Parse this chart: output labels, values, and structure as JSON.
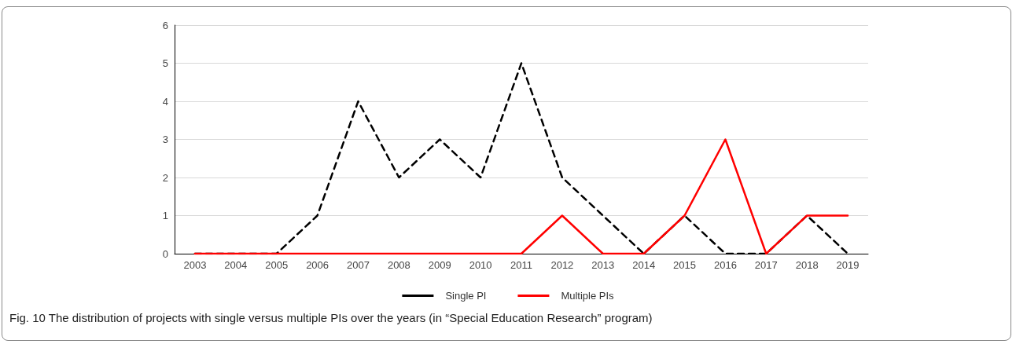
{
  "chart_data": {
    "type": "line",
    "categories": [
      "2003",
      "2004",
      "2005",
      "2006",
      "2007",
      "2008",
      "2009",
      "2010",
      "2011",
      "2012",
      "2013",
      "2014",
      "2015",
      "2016",
      "2017",
      "2018",
      "2019"
    ],
    "series": [
      {
        "name": "Single PI",
        "color": "#000000",
        "line_style": "dashed",
        "values": [
          0,
          0,
          0,
          1,
          4,
          2,
          3,
          2,
          5,
          2,
          1,
          0,
          1,
          0,
          0,
          1,
          0
        ]
      },
      {
        "name": "Multiple PIs",
        "color": "#ff0000",
        "line_style": "solid",
        "values": [
          0,
          0,
          0,
          0,
          0,
          0,
          0,
          0,
          0,
          1,
          0,
          0,
          1,
          3,
          0,
          1,
          1
        ]
      }
    ],
    "ylim": [
      0,
      6
    ],
    "yticks": [
      0,
      1,
      2,
      3,
      4,
      5,
      6
    ],
    "grid": "y",
    "legend": "bottom",
    "marker": "none",
    "annotations": [
      "Fig. 10 The distribution of projects with single versus multiple PIs over the years (in “Special Education Research” program)"
    ]
  }
}
